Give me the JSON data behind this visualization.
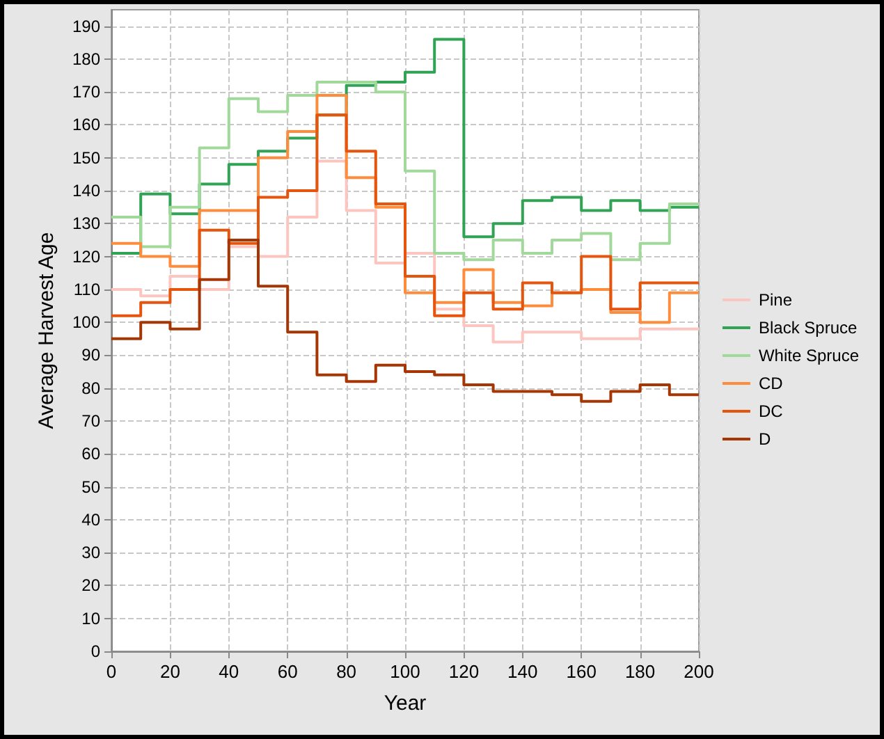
{
  "chart_data": {
    "type": "step",
    "xlabel": "Year",
    "ylabel": "Average Harvest Age",
    "x": [
      0,
      10,
      20,
      30,
      40,
      50,
      60,
      70,
      80,
      90,
      100,
      110,
      120,
      130,
      140,
      150,
      160,
      170,
      180,
      190,
      200
    ],
    "xlim": [
      0,
      200
    ],
    "xticks": [
      0,
      20,
      40,
      60,
      80,
      100,
      120,
      140,
      160,
      180,
      200
    ],
    "ylim": [
      0,
      195
    ],
    "yticks": [
      0,
      10,
      20,
      30,
      40,
      50,
      60,
      70,
      80,
      90,
      100,
      110,
      120,
      130,
      140,
      150,
      160,
      170,
      180,
      190
    ],
    "grid": true,
    "legend": "right",
    "marker": "none",
    "line_style": "solid",
    "series": [
      {
        "name": "Pine",
        "color": "#fcc5c0",
        "values": [
          110,
          108,
          114,
          110,
          123,
          120,
          132,
          149,
          134,
          118,
          121,
          104,
          99,
          94,
          97,
          97,
          95,
          95,
          98,
          98,
          98
        ]
      },
      {
        "name": "Black Spruce",
        "color": "#31a354",
        "values": [
          121,
          139,
          133,
          142,
          148,
          152,
          156,
          163,
          172,
          173,
          176,
          186,
          126,
          130,
          137,
          138,
          134,
          137,
          134,
          135,
          135
        ]
      },
      {
        "name": "White Spruce",
        "color": "#a1d99b",
        "values": [
          132,
          123,
          135,
          153,
          168,
          164,
          169,
          173,
          173,
          170,
          146,
          121,
          119,
          125,
          121,
          125,
          127,
          119,
          124,
          136,
          136
        ]
      },
      {
        "name": "CD",
        "color": "#fd8d3c",
        "values": [
          124,
          120,
          117,
          134,
          134,
          150,
          158,
          169,
          144,
          135,
          109,
          106,
          116,
          106,
          105,
          109,
          110,
          103,
          100,
          109,
          109
        ]
      },
      {
        "name": "DC",
        "color": "#e6550d",
        "values": [
          102,
          106,
          110,
          128,
          124,
          138,
          140,
          163,
          152,
          136,
          114,
          102,
          109,
          104,
          112,
          109,
          120,
          104,
          112,
          112,
          112
        ]
      },
      {
        "name": "D",
        "color": "#a63603",
        "values": [
          95,
          100,
          98,
          113,
          125,
          111,
          97,
          84,
          82,
          87,
          85,
          84,
          81,
          79,
          79,
          78,
          76,
          79,
          81,
          78,
          78
        ]
      }
    ]
  }
}
